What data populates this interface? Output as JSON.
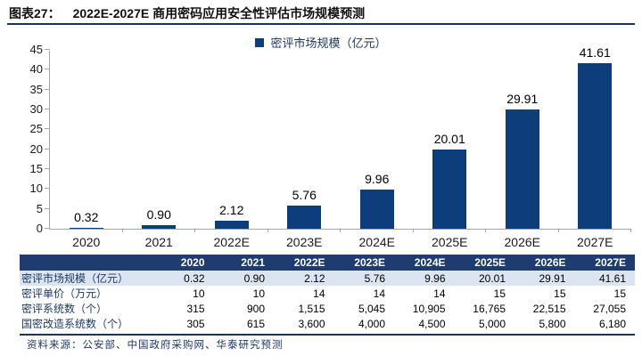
{
  "figure": {
    "caption_prefix": "图表27：",
    "caption_title": "2022E-2027E 商用密码应用安全性评估市场规模预测"
  },
  "chart_data": {
    "type": "bar",
    "title": "",
    "legend": "密评市场规模（亿元）",
    "legend_position": "top-center",
    "categories": [
      "2020",
      "2021",
      "2022E",
      "2023E",
      "2024E",
      "2025E",
      "2026E",
      "2027E"
    ],
    "values": [
      0.32,
      0.9,
      2.12,
      5.76,
      9.96,
      20.01,
      29.91,
      41.61
    ],
    "value_labels": [
      "0.32",
      "0.90",
      "2.12",
      "5.76",
      "9.96",
      "20.01",
      "29.91",
      "41.61"
    ],
    "xlabel": "",
    "ylabel": "",
    "ylim": [
      0,
      45
    ],
    "ytick_step": 5,
    "grid": false,
    "bar_color": "#0E3D7C"
  },
  "table": {
    "header": [
      "",
      "2020",
      "2021",
      "2022E",
      "2023E",
      "2024E",
      "2025E",
      "2026E",
      "2027E"
    ],
    "rows": [
      {
        "label": "密评市场规模（亿元）",
        "values": [
          "0.32",
          "0.90",
          "2.12",
          "5.76",
          "9.96",
          "20.01",
          "29.91",
          "41.61"
        ],
        "highlight": true
      },
      {
        "label": "密评单价（万元）",
        "values": [
          "10",
          "10",
          "14",
          "14",
          "14",
          "15",
          "15",
          "15"
        ],
        "highlight": false
      },
      {
        "label": "密评系统数（个）",
        "values": [
          "315",
          "900",
          "1,515",
          "5,045",
          "10,905",
          "16,765",
          "22,515",
          "27,055"
        ],
        "highlight": false
      },
      {
        "label": "国密改造系统数（个）",
        "values": [
          "305",
          "615",
          "3,600",
          "4,000",
          "4,500",
          "5,000",
          "5,800",
          "6,180"
        ],
        "highlight": false
      }
    ]
  },
  "source": {
    "text": "资料来源：公安部、中国政府采购网、华泰研究预测"
  },
  "colors": {
    "bar": "#0E3D7C",
    "table_header_bg": "#1E3C6F",
    "row_highlight_bg": "#DBE5F1",
    "rule": "#17365D",
    "navy_text": "#1F3864",
    "axis": "#A6A6A6"
  }
}
